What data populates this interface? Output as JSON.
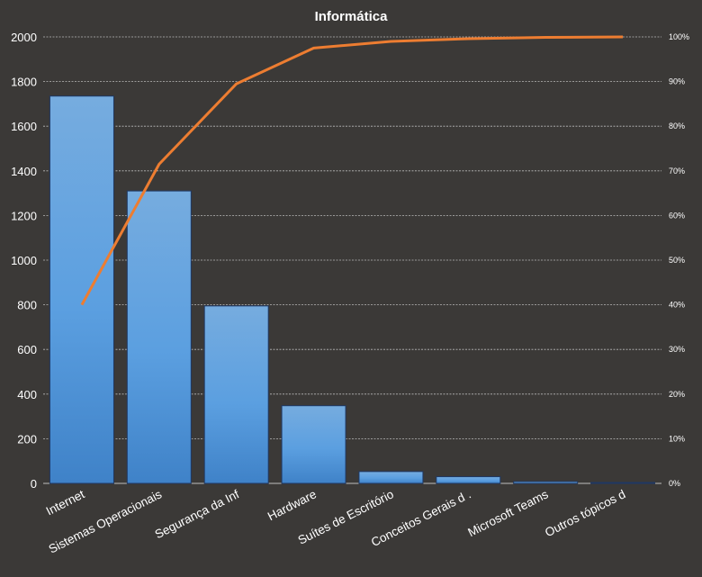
{
  "chart_data": {
    "type": "bar",
    "title": "Informática",
    "categories": [
      "Internet",
      "Sistemas Operacionais",
      "Segurança da Inf",
      "Hardware",
      "Suítes de Escritório",
      "Conceitos Gerais d .",
      "Microsoft Teams",
      "Outros tópicos d"
    ],
    "series": [
      {
        "type": "bar",
        "values": [
          1735,
          1310,
          795,
          348,
          53,
          30,
          8,
          4
        ],
        "color": "#4a90d9"
      },
      {
        "type": "line",
        "axis": "right",
        "values": [
          40.0,
          71.5,
          89.5,
          97.5,
          99.0,
          99.6,
          99.9,
          100.0
        ],
        "color": "#ed7d31"
      }
    ],
    "y_left": {
      "min": 0,
      "max": 2000,
      "step": 200,
      "ticks": [
        "0",
        "200",
        "400",
        "600",
        "800",
        "1000",
        "1200",
        "1400",
        "1600",
        "1800",
        "2000"
      ]
    },
    "y_right": {
      "min": 0,
      "max": 100,
      "step": 10,
      "ticks": [
        "0%",
        "10%",
        "20%",
        "30%",
        "40%",
        "50%",
        "60%",
        "70%",
        "80%",
        "90%",
        "100%"
      ]
    },
    "grid": true,
    "legend": "none",
    "background": "#3b3937"
  }
}
